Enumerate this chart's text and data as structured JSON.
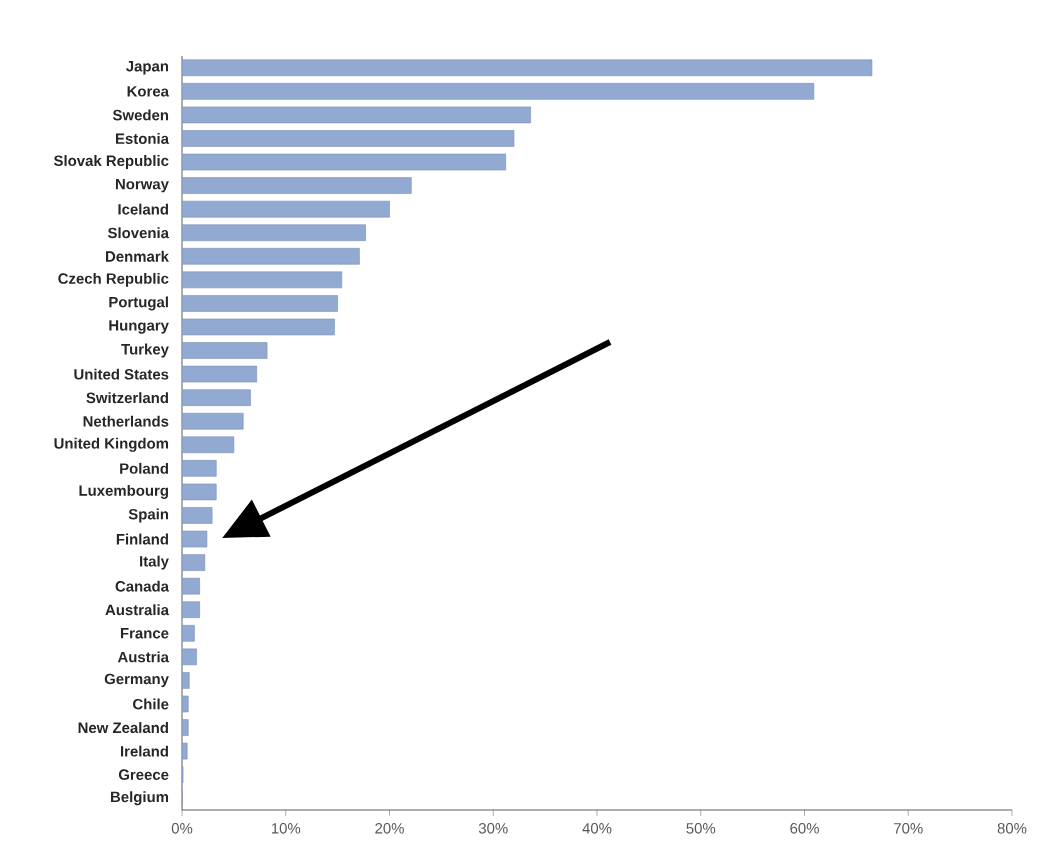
{
  "chart_data": {
    "type": "bar",
    "orientation": "horizontal",
    "color": "#92a9d1",
    "categories": [
      "Japan",
      "Korea",
      "Sweden",
      "Estonia",
      "Slovak Republic",
      "Norway",
      "Iceland",
      "Slovenia",
      "Denmark",
      "Czech Republic",
      "Portugal",
      "Hungary",
      "Turkey",
      "United States",
      "Switzerland",
      "Netherlands",
      "United Kingdom",
      "Poland",
      "Luxembourg",
      "Spain",
      "Finland",
      "Italy",
      "Canada",
      "Australia",
      "France",
      "Austria",
      "Germany",
      "Chile",
      "New Zealand",
      "Ireland",
      "Greece",
      "Belgium"
    ],
    "values": [
      66.5,
      60.9,
      33.6,
      32.0,
      31.2,
      22.1,
      20.0,
      17.7,
      17.1,
      15.4,
      15.0,
      14.7,
      8.2,
      7.2,
      6.6,
      5.9,
      5.0,
      3.3,
      3.3,
      2.9,
      2.4,
      2.2,
      1.7,
      1.7,
      1.2,
      1.4,
      0.7,
      0.6,
      0.6,
      0.5,
      0.1,
      0.0
    ],
    "xlim": [
      0,
      80
    ],
    "xticks": [
      {
        "value": 0,
        "label": "0%"
      },
      {
        "value": 10,
        "label": "10%"
      },
      {
        "value": 20,
        "label": "20%"
      },
      {
        "value": 30,
        "label": "30%"
      },
      {
        "value": 40,
        "label": "40%"
      },
      {
        "value": 50,
        "label": "50%"
      },
      {
        "value": 60,
        "label": "60%"
      },
      {
        "value": 70,
        "label": "70%"
      },
      {
        "value": 80,
        "label": "80%"
      }
    ]
  }
}
